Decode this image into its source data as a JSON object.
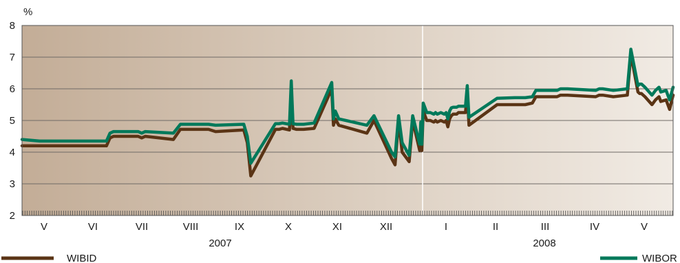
{
  "chart_data": {
    "type": "line",
    "title": "",
    "unit": "%",
    "ylim": [
      2,
      8
    ],
    "yticks": [
      2,
      3,
      4,
      5,
      6,
      7,
      8
    ],
    "grid": true,
    "month_labels": [
      "V",
      "VI",
      "VII",
      "VIII",
      "IX",
      "X",
      "XI",
      "XII",
      "I",
      "II",
      "III",
      "IV",
      "V"
    ],
    "year_labels": [
      "2007",
      "2008"
    ],
    "series": [
      {
        "name": "WIBID",
        "color": "#5a3415",
        "x": [
          0,
          0.5,
          0.5,
          1.5,
          2.4,
          2.5,
          2.6,
          3.3,
          3.4,
          3.5,
          4.3,
          4.5,
          5.3,
          5.5,
          6.3,
          6.4,
          6.5,
          7.2,
          7.3,
          7.4,
          7.6,
          7.65,
          7.7,
          7.8,
          8.0,
          8.3,
          8.3,
          8.8,
          8.85,
          8.9,
          9.0,
          9.8,
          10.0,
          10.5,
          10.6,
          10.7,
          10.8,
          11.0,
          11.1,
          11.3,
          11.33,
          11.36,
          11.4,
          11.5,
          11.6,
          11.7,
          11.75,
          11.8,
          11.9,
          12.0,
          12.05,
          12.1,
          12.15,
          12.2,
          12.25,
          12.3,
          12.35,
          12.4,
          12.45,
          12.5,
          12.55,
          12.6,
          12.65,
          12.7,
          13.5,
          14.0,
          14.3,
          14.5,
          14.6,
          15.2,
          15.3,
          15.35,
          15.5,
          16.3,
          16.4,
          16.5,
          16.8,
          17.2,
          17.3,
          17.5,
          17.55,
          17.6,
          17.7,
          17.9,
          18.0,
          18.1,
          18.15,
          18.3,
          18.4,
          18.5
        ],
        "values": [
          4.2,
          4.2,
          4.2,
          4.2,
          4.2,
          4.45,
          4.5,
          4.5,
          4.45,
          4.5,
          4.4,
          4.72,
          4.72,
          4.65,
          4.7,
          4.3,
          3.25,
          4.72,
          4.72,
          4.75,
          4.7,
          6.05,
          4.75,
          4.72,
          4.72,
          4.75,
          4.75,
          6.0,
          4.85,
          5.05,
          4.85,
          4.6,
          5.0,
          3.8,
          3.6,
          5.0,
          4.0,
          3.7,
          5.0,
          4.05,
          4.55,
          4.05,
          5.3,
          5.0,
          5.0,
          4.95,
          5.0,
          4.95,
          5.0,
          4.95,
          5.0,
          4.8,
          5.05,
          5.15,
          5.2,
          5.2,
          5.2,
          5.25,
          5.25,
          5.25,
          5.25,
          5.25,
          5.9,
          4.85,
          5.5,
          5.5,
          5.5,
          5.55,
          5.75,
          5.75,
          5.8,
          5.8,
          5.8,
          5.75,
          5.8,
          5.8,
          5.75,
          5.8,
          7.1,
          5.9,
          5.85,
          5.85,
          5.75,
          5.5,
          5.65,
          5.75,
          5.6,
          5.65,
          5.35,
          5.8
        ]
      },
      {
        "name": "WIBOR",
        "color": "#00795a",
        "x": [
          0,
          0.5,
          0.5,
          1.5,
          2.4,
          2.5,
          2.6,
          3.3,
          3.4,
          3.5,
          4.3,
          4.5,
          5.3,
          5.5,
          6.3,
          6.4,
          6.5,
          7.2,
          7.3,
          7.4,
          7.6,
          7.65,
          7.7,
          7.8,
          8.0,
          8.3,
          8.3,
          8.8,
          8.85,
          8.9,
          9.0,
          9.8,
          10.0,
          10.5,
          10.6,
          10.7,
          10.8,
          11.0,
          11.1,
          11.3,
          11.33,
          11.36,
          11.4,
          11.5,
          11.6,
          11.7,
          11.75,
          11.8,
          11.9,
          12.0,
          12.05,
          12.1,
          12.15,
          12.2,
          12.25,
          12.3,
          12.35,
          12.4,
          12.45,
          12.5,
          12.55,
          12.6,
          12.65,
          12.7,
          13.5,
          14.0,
          14.3,
          14.5,
          14.6,
          15.2,
          15.3,
          15.35,
          15.5,
          16.3,
          16.4,
          16.5,
          16.8,
          17.2,
          17.3,
          17.5,
          17.55,
          17.6,
          17.7,
          17.9,
          18.0,
          18.1,
          18.15,
          18.3,
          18.4,
          18.5
        ],
        "values": [
          4.4,
          4.35,
          4.35,
          4.35,
          4.35,
          4.6,
          4.65,
          4.65,
          4.6,
          4.65,
          4.6,
          4.88,
          4.88,
          4.85,
          4.88,
          4.5,
          3.65,
          4.9,
          4.9,
          4.92,
          4.88,
          6.25,
          4.9,
          4.88,
          4.88,
          4.92,
          4.92,
          6.2,
          5.05,
          5.3,
          5.05,
          4.85,
          5.15,
          4.0,
          3.85,
          5.15,
          4.3,
          3.9,
          5.15,
          4.25,
          4.95,
          4.25,
          5.55,
          5.25,
          5.25,
          5.2,
          5.25,
          5.2,
          5.25,
          5.2,
          5.25,
          5.05,
          5.3,
          5.4,
          5.42,
          5.42,
          5.42,
          5.45,
          5.45,
          5.45,
          5.45,
          5.45,
          6.1,
          5.1,
          5.7,
          5.72,
          5.72,
          5.75,
          5.95,
          5.95,
          6.0,
          6.0,
          6.0,
          5.95,
          6.0,
          6.0,
          5.95,
          6.0,
          7.25,
          6.1,
          6.15,
          6.15,
          6.05,
          5.8,
          5.95,
          6.05,
          5.9,
          5.95,
          5.65,
          6.05
        ]
      }
    ]
  }
}
